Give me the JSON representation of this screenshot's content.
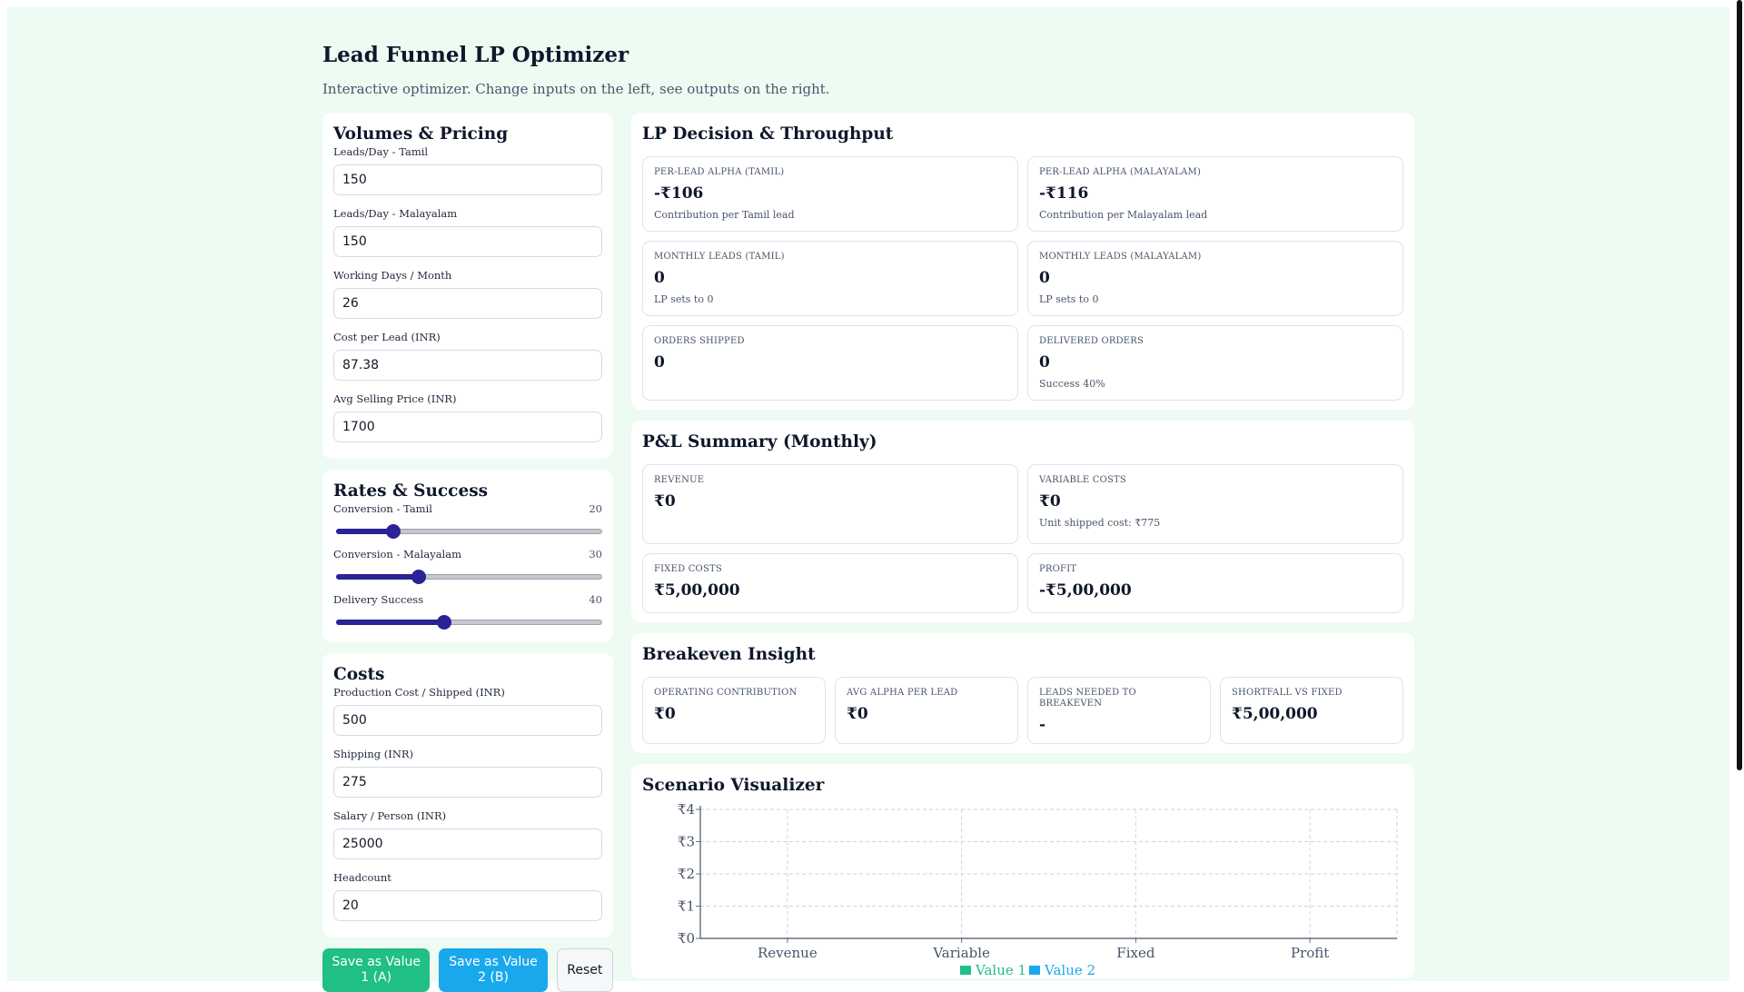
{
  "page": {
    "title": "Lead Funnel LP Optimizer",
    "subtitle": "Interactive optimizer. Change inputs on the left, see outputs on the right."
  },
  "volumes": {
    "title": "Volumes & Pricing",
    "fields": [
      {
        "label": "Leads/Day - Tamil",
        "value": "150"
      },
      {
        "label": "Leads/Day - Malayalam",
        "value": "150"
      },
      {
        "label": "Working Days / Month",
        "value": "26"
      },
      {
        "label": "Cost per Lead (INR)",
        "value": "87.38"
      },
      {
        "label": "Avg Selling Price (INR)",
        "value": "1700"
      }
    ]
  },
  "rates": {
    "title": "Rates & Success",
    "sliders": [
      {
        "label": "Conversion - Tamil",
        "value": 20,
        "display": "20",
        "max": 100
      },
      {
        "label": "Conversion - Malayalam",
        "value": 30,
        "display": "30",
        "max": 100
      },
      {
        "label": "Delivery Success",
        "value": 40,
        "display": "40",
        "max": 100
      }
    ]
  },
  "costs": {
    "title": "Costs",
    "fields": [
      {
        "label": "Production Cost / Shipped (INR)",
        "value": "500"
      },
      {
        "label": "Shipping (INR)",
        "value": "275"
      },
      {
        "label": "Salary / Person (INR)",
        "value": "25000"
      },
      {
        "label": "Headcount",
        "value": "20"
      }
    ]
  },
  "buttons": {
    "save_a": "Save as Value 1 (A)",
    "save_b": "Save as Value 2 (B)",
    "reset": "Reset"
  },
  "lp": {
    "title": "LP Decision & Throughput",
    "metrics": [
      {
        "label": "Per-lead alpha (Tamil)",
        "value": "-₹106",
        "sub": "Contribution per Tamil lead"
      },
      {
        "label": "Per-lead alpha (Malayalam)",
        "value": "-₹116",
        "sub": "Contribution per Malayalam lead"
      },
      {
        "label": "Monthly leads (Tamil)",
        "value": "0",
        "sub": "LP sets to 0"
      },
      {
        "label": "Monthly leads (Malayalam)",
        "value": "0",
        "sub": "LP sets to 0"
      },
      {
        "label": "Orders shipped",
        "value": "0",
        "sub": ""
      },
      {
        "label": "Delivered orders",
        "value": "0",
        "sub": "Success 40%"
      }
    ]
  },
  "pnl": {
    "title": "P&L Summary (Monthly)",
    "metrics": [
      {
        "label": "Revenue",
        "value": "₹0",
        "sub": ""
      },
      {
        "label": "Variable costs",
        "value": "₹0",
        "sub": "Unit shipped cost: ₹775"
      },
      {
        "label": "Fixed costs",
        "value": "₹5,00,000",
        "sub": ""
      },
      {
        "label": "Profit",
        "value": "-₹5,00,000",
        "sub": ""
      }
    ]
  },
  "breakeven": {
    "title": "Breakeven Insight",
    "metrics": [
      {
        "label": "Operating contribution",
        "value": "₹0"
      },
      {
        "label": "Avg alpha per lead",
        "value": "₹0"
      },
      {
        "label": "Leads needed to breakeven",
        "value": "-"
      },
      {
        "label": "Shortfall vs fixed",
        "value": "₹5,00,000"
      }
    ]
  },
  "scenario": {
    "title": "Scenario Visualizer"
  },
  "chart_data": {
    "type": "bar",
    "categories": [
      "Revenue",
      "Variable",
      "Fixed",
      "Profit"
    ],
    "series": [
      {
        "name": "Value 1",
        "values": [
          0,
          0,
          0,
          0
        ],
        "color": "#1fbf86"
      },
      {
        "name": "Value 2",
        "values": [
          0,
          0,
          0,
          0
        ],
        "color": "#1aa8ec"
      }
    ],
    "yticks": [
      "₹0",
      "₹1",
      "₹2",
      "₹3",
      "₹4"
    ],
    "ylim": [
      0,
      4
    ],
    "grid": true,
    "legend": "bottom-center"
  }
}
